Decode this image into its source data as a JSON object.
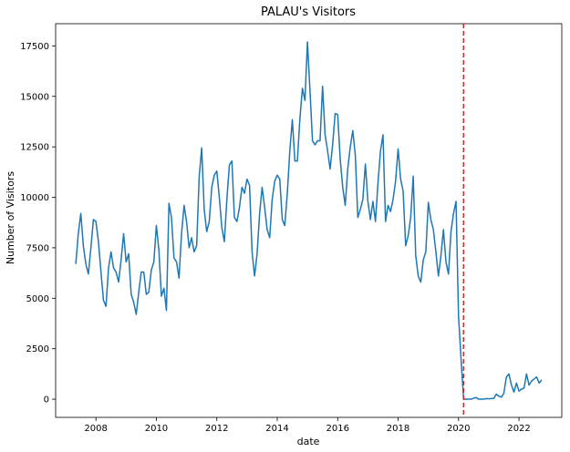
{
  "chart_data": {
    "type": "line",
    "title": "PALAU's Visitors",
    "xlabel": "date",
    "ylabel": "Number of Visitors",
    "x_ticks": [
      "2008",
      "2010",
      "2012",
      "2014",
      "2016",
      "2018",
      "2020",
      "2022"
    ],
    "y_ticks": [
      "0",
      "2500",
      "5000",
      "7500",
      "10000",
      "12500",
      "15000",
      "17500"
    ],
    "xlim": [
      "2006-09",
      "2023-06"
    ],
    "ylim": [
      -900,
      18600
    ],
    "grid": false,
    "line_color": "#1f77b4",
    "vline": {
      "x": "2020-03",
      "color": "#d62728",
      "style": "dashed"
    },
    "series": [
      {
        "start": "2007-05",
        "frequency": "monthly",
        "values": [
          6700,
          8200,
          9200,
          7600,
          6700,
          6200,
          7500,
          8900,
          8800,
          7800,
          6300,
          4900,
          4600,
          6500,
          7300,
          6500,
          6300,
          5800,
          6900,
          8200,
          6800,
          7200,
          5200,
          4800,
          4200,
          5300,
          6300,
          6300,
          5200,
          5300,
          6400,
          6800,
          8600,
          7400,
          5100,
          5500,
          4400,
          9700,
          9000,
          7000,
          6800,
          6000,
          8200,
          9600,
          8800,
          7500,
          8000,
          7300,
          7600,
          11000,
          12450,
          9400,
          8300,
          8800,
          10500,
          11100,
          11300,
          10000,
          8500,
          7800,
          9900,
          11600,
          11800,
          9000,
          8800,
          9500,
          10500,
          10200,
          10900,
          10600,
          7300,
          6100,
          7200,
          9200,
          10500,
          9500,
          8400,
          8000,
          9900,
          10800,
          11100,
          10900,
          8900,
          8600,
          10200,
          12300,
          13850,
          11800,
          11800,
          13900,
          15400,
          14800,
          17700,
          15300,
          12800,
          12600,
          12800,
          12800,
          15500,
          13100,
          12300,
          11400,
          12600,
          14150,
          14100,
          11900,
          10500,
          9600,
          11400,
          12500,
          13300,
          12100,
          9000,
          9400,
          9900,
          11650,
          9800,
          8900,
          9800,
          8800,
          10700,
          12300,
          13100,
          8800,
          9600,
          9300,
          9900,
          10800,
          12400,
          10900,
          10300,
          7600,
          8100,
          9000,
          11050,
          7100,
          6100,
          5800,
          6900,
          7300,
          9750,
          8900,
          8400,
          7300,
          6100,
          7100,
          8400,
          6800,
          6200,
          8300,
          9200,
          9800,
          4100,
          2000,
          0,
          0,
          0,
          0,
          50,
          80,
          0,
          0,
          0,
          30,
          20,
          30,
          40,
          250,
          150,
          100,
          300,
          1100,
          1250,
          700,
          350,
          800,
          400,
          500,
          550,
          1250,
          700,
          900,
          1000,
          1100,
          800,
          950
        ]
      }
    ]
  }
}
